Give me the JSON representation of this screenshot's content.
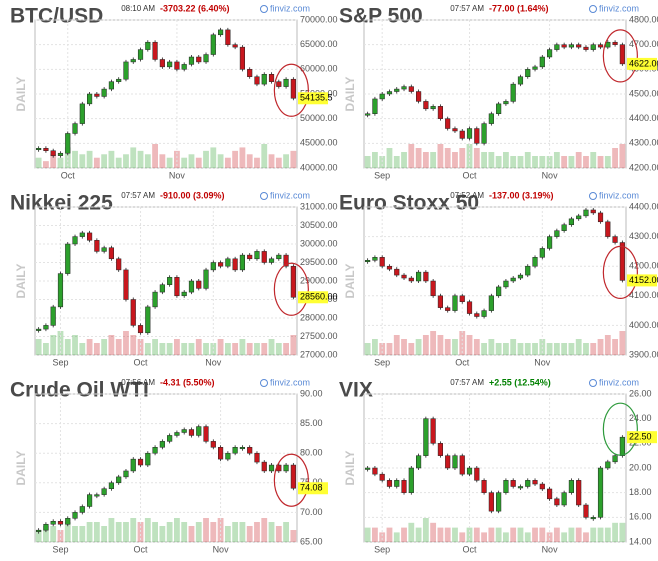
{
  "chart_data": [
    {
      "type": "candlestick",
      "title": "BTC/USD",
      "time": "08:10 AM",
      "change": "-3703.22 (6.40%)",
      "change_color": "#c00000",
      "source": "finviz.com",
      "side_label": "DAILY",
      "circle_color": "#c0282d",
      "categories": [
        null,
        null,
        null,
        null,
        "Oct",
        null,
        null,
        null,
        null,
        null,
        null,
        null,
        null,
        null,
        null,
        null,
        null,
        null,
        null,
        "Nov",
        null,
        null,
        null,
        null,
        null,
        null,
        null,
        null,
        null,
        null,
        null,
        null,
        null,
        null,
        null,
        null
      ],
      "values": [
        44000,
        43500,
        42500,
        43000,
        47000,
        49000,
        53000,
        55000,
        54500,
        56000,
        57500,
        58000,
        61500,
        62000,
        64000,
        65500,
        62000,
        60500,
        61500,
        60000,
        61000,
        62500,
        61500,
        63000,
        67000,
        68000,
        65000,
        64500,
        60000,
        58500,
        57000,
        59000,
        57500,
        56500,
        58000,
        54135.5
      ],
      "last_label": "54135.5",
      "volume": [
        3,
        2,
        4,
        3,
        6,
        5,
        4,
        5,
        3,
        4,
        5,
        3,
        4,
        6,
        5,
        4,
        7,
        4,
        3,
        5,
        3,
        4,
        3,
        5,
        6,
        4,
        3,
        5,
        6,
        4,
        3,
        7,
        4,
        3,
        4,
        5
      ],
      "ylim": [
        40000,
        70000
      ],
      "yticks": [
        {
          "value": 40000,
          "label": "40000.00"
        },
        {
          "value": 45000,
          "label": "45000.00"
        },
        {
          "value": 50000,
          "label": "50000.00"
        },
        {
          "value": 55000,
          "label": "55000.00"
        },
        {
          "value": 60000,
          "label": "60000.00"
        },
        {
          "value": 65000,
          "label": "65000.00"
        },
        {
          "value": 70000,
          "label": "70000.00"
        }
      ],
      "grid": true
    },
    {
      "type": "candlestick",
      "title": "S&P 500",
      "time": "07:57 AM",
      "change": "-77.00 (1.64%)",
      "change_color": "#c00000",
      "source": "finviz.com",
      "side_label": "DAILY",
      "circle_color": "#c0282d",
      "categories": [
        null,
        null,
        "Sep",
        null,
        null,
        null,
        null,
        null,
        null,
        null,
        null,
        null,
        null,
        null,
        "Oct",
        null,
        null,
        null,
        null,
        null,
        null,
        null,
        null,
        null,
        null,
        "Nov",
        null,
        null,
        null,
        null,
        null,
        null,
        null,
        null,
        null,
        null
      ],
      "values": [
        4420,
        4480,
        4500,
        4510,
        4520,
        4530,
        4510,
        4470,
        4440,
        4450,
        4400,
        4360,
        4350,
        4320,
        4360,
        4300,
        4380,
        4420,
        4460,
        4470,
        4540,
        4570,
        4600,
        4610,
        4650,
        4680,
        4700,
        4690,
        4700,
        4690,
        4680,
        4700,
        4690,
        4710,
        4700,
        4622
      ],
      "last_label": "4622.00",
      "volume": [
        3,
        4,
        3,
        5,
        3,
        4,
        6,
        5,
        4,
        4,
        6,
        5,
        4,
        5,
        6,
        5,
        4,
        4,
        3,
        4,
        3,
        3,
        4,
        3,
        3,
        3,
        4,
        3,
        3,
        4,
        3,
        4,
        3,
        3,
        5,
        6
      ],
      "ylim": [
        4200,
        4800
      ],
      "yticks": [
        {
          "value": 4200,
          "label": "4200.00"
        },
        {
          "value": 4300,
          "label": "4300.00"
        },
        {
          "value": 4400,
          "label": "4400.00"
        },
        {
          "value": 4500,
          "label": "4500.00"
        },
        {
          "value": 4600,
          "label": "4600.00"
        },
        {
          "value": 4700,
          "label": "4700.00"
        },
        {
          "value": 4800,
          "label": "4800.00"
        }
      ],
      "grid": true
    },
    {
      "type": "candlestick",
      "title": "Nikkei 225",
      "time": "07:57 AM",
      "change": "-910.00 (3.09%)",
      "change_color": "#c00000",
      "source": "finviz.com",
      "side_label": "DAILY",
      "circle_color": "#c0282d",
      "categories": [
        null,
        null,
        null,
        "Sep",
        null,
        null,
        null,
        null,
        null,
        null,
        null,
        null,
        null,
        null,
        "Oct",
        null,
        null,
        null,
        null,
        null,
        null,
        null,
        null,
        null,
        "Nov",
        null,
        null,
        null,
        null,
        null,
        null,
        null,
        null,
        null,
        null,
        null
      ],
      "values": [
        27700,
        27800,
        28300,
        29200,
        30000,
        30200,
        30300,
        30100,
        29800,
        29900,
        29600,
        29300,
        28500,
        27800,
        27600,
        28300,
        28700,
        28900,
        29100,
        28600,
        28700,
        29000,
        28800,
        29300,
        29500,
        29400,
        29600,
        29300,
        29700,
        29600,
        29800,
        29500,
        29600,
        29700,
        29400,
        28560
      ],
      "last_label": "28560.00",
      "volume": [
        4,
        3,
        5,
        6,
        4,
        5,
        3,
        4,
        3,
        4,
        5,
        4,
        6,
        5,
        4,
        3,
        4,
        3,
        3,
        4,
        3,
        3,
        4,
        3,
        3,
        4,
        3,
        3,
        4,
        3,
        3,
        3,
        4,
        3,
        3,
        5
      ],
      "ylim": [
        27000,
        31000
      ],
      "yticks": [
        {
          "value": 27000,
          "label": "27000.00"
        },
        {
          "value": 27500,
          "label": "27500.00"
        },
        {
          "value": 28000,
          "label": "28000.00"
        },
        {
          "value": 28500,
          "label": "28500.00"
        },
        {
          "value": 29000,
          "label": "29000.00"
        },
        {
          "value": 29500,
          "label": "29500.00"
        },
        {
          "value": 30000,
          "label": "30000.00"
        },
        {
          "value": 30500,
          "label": "30500.00"
        },
        {
          "value": 31000,
          "label": "31000.00"
        }
      ],
      "grid": true
    },
    {
      "type": "candlestick",
      "title": "Euro Stoxx 50",
      "time": "07:52 AM",
      "change": "-137.00 (3.19%)",
      "change_color": "#c00000",
      "source": "finviz.com",
      "side_label": "DAILY",
      "circle_color": "#c0282d",
      "categories": [
        null,
        null,
        "Sep",
        null,
        null,
        null,
        null,
        null,
        null,
        null,
        null,
        null,
        null,
        "Oct",
        null,
        null,
        null,
        null,
        null,
        null,
        null,
        null,
        null,
        null,
        "Nov",
        null,
        null,
        null,
        null,
        null,
        null,
        null,
        null,
        null,
        null,
        null
      ],
      "values": [
        4220,
        4230,
        4200,
        4190,
        4170,
        4160,
        4150,
        4180,
        4150,
        4100,
        4060,
        4050,
        4100,
        4080,
        4040,
        4030,
        4050,
        4100,
        4130,
        4150,
        4160,
        4170,
        4200,
        4230,
        4260,
        4300,
        4320,
        4340,
        4360,
        4370,
        4390,
        4380,
        4350,
        4300,
        4280,
        4152
      ],
      "last_label": "4152.00",
      "volume": [
        3,
        4,
        3,
        3,
        5,
        4,
        3,
        4,
        5,
        6,
        5,
        4,
        4,
        6,
        5,
        4,
        3,
        4,
        3,
        3,
        4,
        3,
        3,
        3,
        4,
        3,
        3,
        3,
        3,
        4,
        3,
        3,
        4,
        5,
        4,
        6
      ],
      "ylim": [
        3900,
        4400
      ],
      "yticks": [
        {
          "value": 3900,
          "label": "3900.00"
        },
        {
          "value": 4000,
          "label": "4000.00"
        },
        {
          "value": 4100,
          "label": "4100.00"
        },
        {
          "value": 4200,
          "label": "4200.00"
        },
        {
          "value": 4300,
          "label": "4300.00"
        },
        {
          "value": 4400,
          "label": "4400.00"
        }
      ],
      "grid": true
    },
    {
      "type": "candlestick",
      "title": "Crude Oil WTI",
      "time": "07:56 AM",
      "change": "-4.31 (5.50%)",
      "change_color": "#c00000",
      "source": "finviz.com",
      "side_label": "DAILY",
      "circle_color": "#c0282d",
      "categories": [
        null,
        null,
        null,
        "Sep",
        null,
        null,
        null,
        null,
        null,
        null,
        null,
        null,
        null,
        null,
        "Oct",
        null,
        null,
        null,
        null,
        null,
        null,
        null,
        null,
        null,
        null,
        "Nov",
        null,
        null,
        null,
        null,
        null,
        null,
        null,
        null,
        null,
        null
      ],
      "values": [
        67,
        68,
        68.5,
        68,
        69,
        70,
        71,
        73,
        73,
        74,
        75,
        76,
        77,
        79,
        78,
        80,
        81,
        82,
        83,
        83.5,
        84,
        83,
        84.5,
        82,
        81,
        79,
        80,
        81,
        81,
        80,
        78.5,
        77,
        78,
        77,
        78,
        74.08
      ],
      "last_label": "74.08",
      "volume": [
        3,
        4,
        4,
        3,
        5,
        4,
        4,
        5,
        5,
        4,
        6,
        5,
        5,
        6,
        5,
        6,
        5,
        4,
        5,
        6,
        5,
        4,
        5,
        6,
        5,
        6,
        4,
        5,
        5,
        4,
        5,
        6,
        5,
        4,
        5,
        3
      ],
      "ylim": [
        65,
        90
      ],
      "yticks": [
        {
          "value": 65,
          "label": "65.00"
        },
        {
          "value": 70,
          "label": "70.00"
        },
        {
          "value": 75,
          "label": "75.00"
        },
        {
          "value": 80,
          "label": "80.00"
        },
        {
          "value": 85,
          "label": "85.00"
        },
        {
          "value": 90,
          "label": "90.00"
        }
      ],
      "grid": true
    },
    {
      "type": "candlestick",
      "title": "VIX",
      "time": "07:57 AM",
      "change": "+2.55 (12.54%)",
      "change_color": "#008000",
      "source": "finviz.com",
      "side_label": "DAILY",
      "circle_color": "#2e9a3c",
      "categories": [
        null,
        null,
        "Sep",
        null,
        null,
        null,
        null,
        null,
        null,
        null,
        null,
        null,
        null,
        null,
        "Oct",
        null,
        null,
        null,
        null,
        null,
        null,
        null,
        null,
        null,
        null,
        "Nov",
        null,
        null,
        null,
        null,
        null,
        null,
        null,
        null,
        null,
        null
      ],
      "values": [
        20,
        19.5,
        19,
        18.5,
        19,
        18,
        20,
        21,
        24,
        22,
        21,
        20,
        21,
        19.5,
        20,
        19,
        18,
        16.5,
        18,
        19,
        18.5,
        18.5,
        19,
        18.7,
        18.3,
        17.5,
        17,
        18,
        19,
        17,
        16,
        16,
        20,
        20.5,
        21,
        22.5
      ],
      "last_label": "22.50",
      "volume": [
        3,
        3,
        2,
        3,
        2,
        3,
        4,
        3,
        5,
        4,
        3,
        3,
        3,
        2,
        3,
        3,
        2,
        3,
        3,
        2,
        3,
        3,
        2,
        3,
        3,
        2,
        3,
        2,
        3,
        3,
        2,
        3,
        3,
        3,
        4,
        4
      ],
      "ylim": [
        14,
        26
      ],
      "yticks": [
        {
          "value": 14,
          "label": "14.00"
        },
        {
          "value": 16,
          "label": "16.00"
        },
        {
          "value": 18,
          "label": "18.00"
        },
        {
          "value": 20,
          "label": "20.00"
        },
        {
          "value": 22,
          "label": "22.00"
        },
        {
          "value": 24,
          "label": "24.00"
        },
        {
          "value": 26,
          "label": "26.00"
        }
      ],
      "grid": true
    }
  ]
}
